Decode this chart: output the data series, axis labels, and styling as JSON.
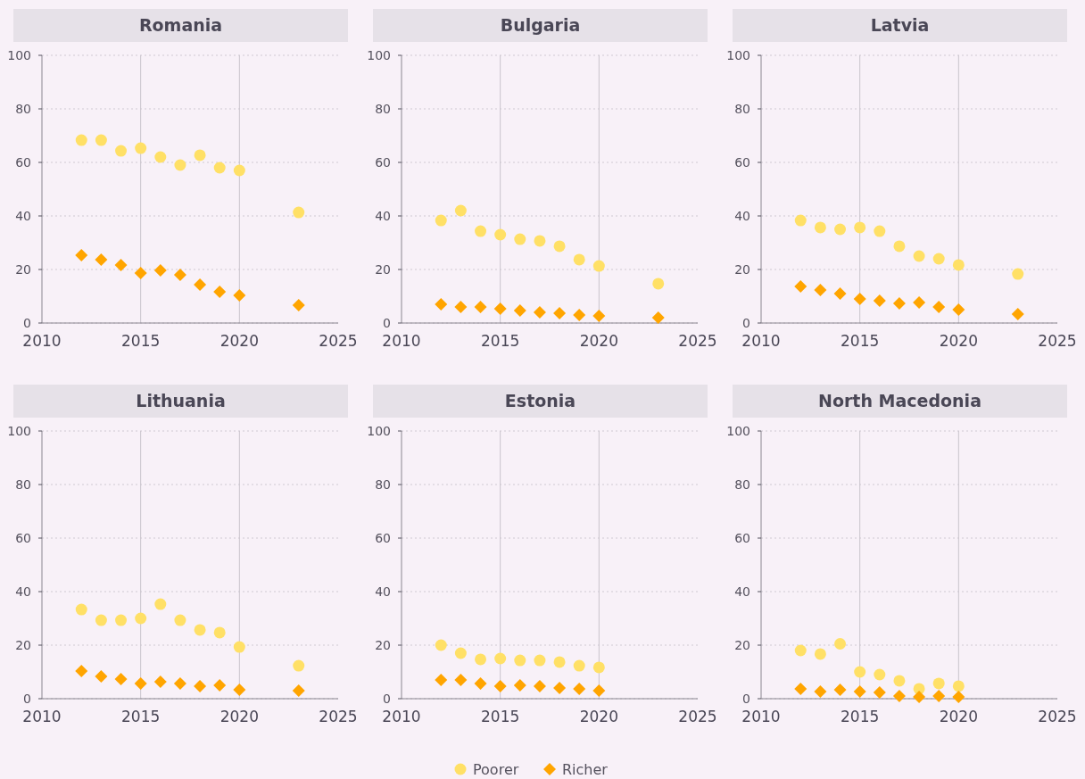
{
  "chart_data": [
    {
      "type": "scatter",
      "title": "Romania",
      "xlim": [
        2010,
        2025
      ],
      "xticks": [
        2010,
        2015,
        2020,
        2025
      ],
      "ylim": [
        0,
        100
      ],
      "yticks": [
        0,
        20,
        40,
        60,
        80,
        100
      ],
      "grid": true,
      "legend": "bottom",
      "series": [
        {
          "name": "Poorer",
          "color": "#ffe066",
          "marker": "circle",
          "x": [
            2012,
            2013,
            2014,
            2015,
            2016,
            2017,
            2018,
            2019,
            2020,
            2023
          ],
          "values": [
            68.3,
            68.3,
            64.3,
            65.3,
            62,
            59,
            62.7,
            58,
            57,
            41.3
          ]
        },
        {
          "name": "Richer",
          "color": "#ffa500",
          "marker": "diamond",
          "x": [
            2012,
            2013,
            2014,
            2015,
            2016,
            2017,
            2018,
            2019,
            2020,
            2023
          ],
          "values": [
            25.3,
            23.7,
            21.7,
            18.7,
            19.7,
            18,
            14.3,
            11.7,
            10.3,
            6.7
          ]
        }
      ]
    },
    {
      "type": "scatter",
      "title": "Bulgaria",
      "xlim": [
        2010,
        2025
      ],
      "xticks": [
        2010,
        2015,
        2020,
        2025
      ],
      "ylim": [
        0,
        100
      ],
      "yticks": [
        0,
        20,
        40,
        60,
        80,
        100
      ],
      "grid": true,
      "legend": "bottom",
      "series": [
        {
          "name": "Poorer",
          "color": "#ffe066",
          "marker": "circle",
          "x": [
            2012,
            2013,
            2014,
            2015,
            2016,
            2017,
            2018,
            2019,
            2020,
            2023
          ],
          "values": [
            38.3,
            42,
            34.3,
            33,
            31.3,
            30.7,
            28.7,
            23.7,
            21.3,
            14.7
          ]
        },
        {
          "name": "Richer",
          "color": "#ffa500",
          "marker": "diamond",
          "x": [
            2012,
            2013,
            2014,
            2015,
            2016,
            2017,
            2018,
            2019,
            2020,
            2023
          ],
          "values": [
            7,
            6,
            6,
            5.3,
            4.7,
            4,
            3.7,
            3,
            2.7,
            2
          ]
        }
      ]
    },
    {
      "type": "scatter",
      "title": "Latvia",
      "xlim": [
        2010,
        2025
      ],
      "xticks": [
        2010,
        2015,
        2020,
        2025
      ],
      "ylim": [
        0,
        100
      ],
      "yticks": [
        0,
        20,
        40,
        60,
        80,
        100
      ],
      "grid": true,
      "legend": "bottom",
      "series": [
        {
          "name": "Poorer",
          "color": "#ffe066",
          "marker": "circle",
          "x": [
            2012,
            2013,
            2014,
            2015,
            2016,
            2017,
            2018,
            2019,
            2020,
            2023
          ],
          "values": [
            38.3,
            35.7,
            35,
            35.7,
            34.3,
            28.7,
            25,
            24,
            21.7,
            18.3
          ]
        },
        {
          "name": "Richer",
          "color": "#ffa500",
          "marker": "diamond",
          "x": [
            2012,
            2013,
            2014,
            2015,
            2016,
            2017,
            2018,
            2019,
            2020,
            2023
          ],
          "values": [
            13.7,
            12.3,
            11,
            9,
            8.3,
            7.3,
            7.7,
            6,
            5,
            3.3
          ]
        }
      ]
    },
    {
      "type": "scatter",
      "title": "Lithuania",
      "xlim": [
        2010,
        2025
      ],
      "xticks": [
        2010,
        2015,
        2020,
        2025
      ],
      "ylim": [
        0,
        100
      ],
      "yticks": [
        0,
        20,
        40,
        60,
        80,
        100
      ],
      "grid": true,
      "legend": "bottom",
      "series": [
        {
          "name": "Poorer",
          "color": "#ffe066",
          "marker": "circle",
          "x": [
            2012,
            2013,
            2014,
            2015,
            2016,
            2017,
            2018,
            2019,
            2020,
            2023
          ],
          "values": [
            33.3,
            29.3,
            29.3,
            30,
            35.3,
            29.3,
            25.7,
            24.7,
            19.3,
            12.3
          ]
        },
        {
          "name": "Richer",
          "color": "#ffa500",
          "marker": "diamond",
          "x": [
            2012,
            2013,
            2014,
            2015,
            2016,
            2017,
            2018,
            2019,
            2020,
            2023
          ],
          "values": [
            10.3,
            8.3,
            7.3,
            5.7,
            6.3,
            5.7,
            4.7,
            5,
            3.3,
            3
          ]
        }
      ]
    },
    {
      "type": "scatter",
      "title": "Estonia",
      "xlim": [
        2010,
        2025
      ],
      "xticks": [
        2010,
        2015,
        2020,
        2025
      ],
      "ylim": [
        0,
        100
      ],
      "yticks": [
        0,
        20,
        40,
        60,
        80,
        100
      ],
      "grid": true,
      "legend": "bottom",
      "series": [
        {
          "name": "Poorer",
          "color": "#ffe066",
          "marker": "circle",
          "x": [
            2012,
            2013,
            2014,
            2015,
            2016,
            2017,
            2018,
            2019,
            2020
          ],
          "values": [
            20,
            17,
            14.7,
            15,
            14.3,
            14.3,
            13.7,
            12.3,
            11.7
          ]
        },
        {
          "name": "Richer",
          "color": "#ffa500",
          "marker": "diamond",
          "x": [
            2012,
            2013,
            2014,
            2015,
            2016,
            2017,
            2018,
            2019,
            2020
          ],
          "values": [
            7,
            7,
            5.7,
            4.7,
            5,
            4.7,
            4,
            3.7,
            3
          ]
        }
      ]
    },
    {
      "type": "scatter",
      "title": "North Macedonia",
      "xlim": [
        2010,
        2025
      ],
      "xticks": [
        2010,
        2015,
        2020,
        2025
      ],
      "ylim": [
        0,
        100
      ],
      "yticks": [
        0,
        20,
        40,
        60,
        80,
        100
      ],
      "grid": true,
      "legend": "bottom",
      "series": [
        {
          "name": "Poorer",
          "color": "#ffe066",
          "marker": "circle",
          "x": [
            2012,
            2013,
            2014,
            2015,
            2016,
            2017,
            2018,
            2019,
            2020
          ],
          "values": [
            18,
            16.7,
            20.5,
            10,
            9,
            6.7,
            3.7,
            5.7,
            4.7
          ]
        },
        {
          "name": "Richer",
          "color": "#ffa500",
          "marker": "diamond",
          "x": [
            2012,
            2013,
            2014,
            2015,
            2016,
            2017,
            2018,
            2019,
            2020
          ],
          "values": [
            3.7,
            2.7,
            3.3,
            2.7,
            2.3,
            1,
            0.7,
            1,
            0.7
          ]
        }
      ]
    }
  ]
}
